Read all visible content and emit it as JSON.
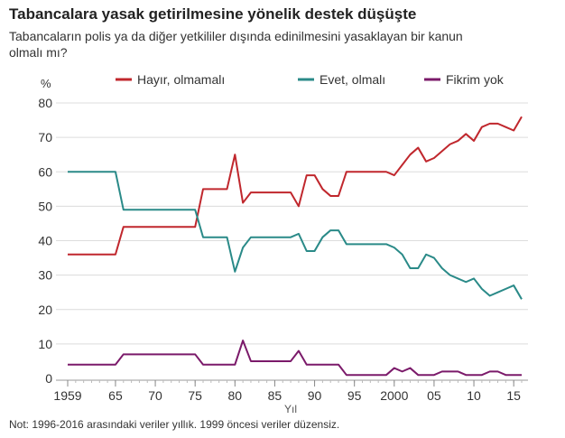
{
  "title": "Tabancalara yasak getirilmesine yönelik destek düşüşte",
  "subtitle": "Tabancaların polis ya da diğer yetkililer dışında edinilmesini yasaklayan bir kanun olmalı mı?",
  "note": "Not: 1996-2016 arasındaki veriler yıllık. 1999 öncesi veriler düzensiz.",
  "chart_data": {
    "type": "line",
    "ylabel": "%",
    "xlabel": "Yıl",
    "ylim": [
      0,
      80
    ],
    "xlim": [
      1959,
      2016
    ],
    "yticks": [
      0,
      10,
      20,
      30,
      40,
      50,
      60,
      70,
      80
    ],
    "xticks": [
      {
        "v": 1959,
        "l": "1959"
      },
      {
        "v": 1965,
        "l": "65"
      },
      {
        "v": 1970,
        "l": "70"
      },
      {
        "v": 1975,
        "l": "75"
      },
      {
        "v": 1980,
        "l": "80"
      },
      {
        "v": 1985,
        "l": "85"
      },
      {
        "v": 1990,
        "l": "90"
      },
      {
        "v": 1995,
        "l": "95"
      },
      {
        "v": 2000,
        "l": "2000"
      },
      {
        "v": 2005,
        "l": "05"
      },
      {
        "v": 2010,
        "l": "10"
      },
      {
        "v": 2015,
        "l": "15"
      }
    ],
    "grid": true,
    "legend": "top",
    "series": [
      {
        "name": "Hayır, olmamalı",
        "color": "#c0272d",
        "points": [
          [
            1959,
            36
          ],
          [
            1965,
            36
          ],
          [
            1966,
            44
          ],
          [
            1975,
            44
          ],
          [
            1976,
            55
          ],
          [
            1979,
            55
          ],
          [
            1980,
            65
          ],
          [
            1981,
            51
          ],
          [
            1982,
            54
          ],
          [
            1987,
            54
          ],
          [
            1988,
            50
          ],
          [
            1989,
            59
          ],
          [
            1990,
            59
          ],
          [
            1991,
            55
          ],
          [
            1992,
            53
          ],
          [
            1993,
            53
          ],
          [
            1994,
            60
          ],
          [
            1999,
            60
          ],
          [
            2000,
            59
          ],
          [
            2001,
            62
          ],
          [
            2002,
            65
          ],
          [
            2003,
            67
          ],
          [
            2004,
            63
          ],
          [
            2005,
            64
          ],
          [
            2006,
            66
          ],
          [
            2007,
            68
          ],
          [
            2008,
            69
          ],
          [
            2009,
            71
          ],
          [
            2010,
            69
          ],
          [
            2011,
            73
          ],
          [
            2012,
            74
          ],
          [
            2013,
            74
          ],
          [
            2014,
            73
          ],
          [
            2015,
            72
          ],
          [
            2016,
            76
          ]
        ]
      },
      {
        "name": "Evet, olmalı",
        "color": "#2a8a88",
        "points": [
          [
            1959,
            60
          ],
          [
            1965,
            60
          ],
          [
            1966,
            49
          ],
          [
            1975,
            49
          ],
          [
            1976,
            41
          ],
          [
            1979,
            41
          ],
          [
            1980,
            31
          ],
          [
            1981,
            38
          ],
          [
            1982,
            41
          ],
          [
            1987,
            41
          ],
          [
            1988,
            42
          ],
          [
            1989,
            37
          ],
          [
            1990,
            37
          ],
          [
            1991,
            41
          ],
          [
            1992,
            43
          ],
          [
            1993,
            43
          ],
          [
            1994,
            39
          ],
          [
            1999,
            39
          ],
          [
            2000,
            38
          ],
          [
            2001,
            36
          ],
          [
            2002,
            32
          ],
          [
            2003,
            32
          ],
          [
            2004,
            36
          ],
          [
            2005,
            35
          ],
          [
            2006,
            32
          ],
          [
            2007,
            30
          ],
          [
            2008,
            29
          ],
          [
            2009,
            28
          ],
          [
            2010,
            29
          ],
          [
            2011,
            26
          ],
          [
            2012,
            24
          ],
          [
            2013,
            25
          ],
          [
            2014,
            26
          ],
          [
            2015,
            27
          ],
          [
            2016,
            23
          ]
        ]
      },
      {
        "name": "Fikrim yok",
        "color": "#7b1a6a",
        "points": [
          [
            1959,
            4
          ],
          [
            1965,
            4
          ],
          [
            1966,
            7
          ],
          [
            1975,
            7
          ],
          [
            1976,
            4
          ],
          [
            1980,
            4
          ],
          [
            1981,
            11
          ],
          [
            1982,
            5
          ],
          [
            1987,
            5
          ],
          [
            1988,
            8
          ],
          [
            1989,
            4
          ],
          [
            1993,
            4
          ],
          [
            1994,
            1
          ],
          [
            1999,
            1
          ],
          [
            2000,
            3
          ],
          [
            2001,
            2
          ],
          [
            2002,
            3
          ],
          [
            2003,
            1
          ],
          [
            2005,
            1
          ],
          [
            2006,
            2
          ],
          [
            2008,
            2
          ],
          [
            2009,
            1
          ],
          [
            2011,
            1
          ],
          [
            2012,
            2
          ],
          [
            2013,
            2
          ],
          [
            2014,
            1
          ],
          [
            2016,
            1
          ]
        ]
      }
    ]
  }
}
